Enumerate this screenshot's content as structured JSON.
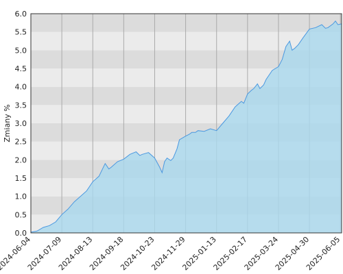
{
  "chart_data": {
    "type": "area",
    "y_label": "Zmiany %",
    "x": [
      0,
      5,
      10,
      15,
      20,
      25,
      30,
      35,
      40,
      45,
      50,
      55,
      60,
      63,
      65,
      70,
      75,
      80,
      85,
      88,
      90,
      95,
      100,
      104,
      106,
      108,
      110,
      113,
      115,
      118,
      120,
      125,
      128,
      130,
      133,
      135,
      140,
      145,
      150,
      155,
      160,
      165,
      170,
      172,
      175,
      178,
      180,
      183,
      185,
      188,
      190,
      195,
      200,
      203,
      206,
      209,
      211,
      213,
      216,
      220,
      225,
      230,
      235,
      238,
      240,
      244,
      246,
      248,
      251
    ],
    "series": [
      {
        "name": "Zmiany %",
        "color": "#4a98e0",
        "fill": "#a9d8ee",
        "values": [
          0.02,
          0.05,
          0.15,
          0.2,
          0.3,
          0.5,
          0.65,
          0.85,
          1.0,
          1.15,
          1.4,
          1.55,
          1.9,
          1.75,
          1.8,
          1.95,
          2.02,
          2.15,
          2.22,
          2.12,
          2.15,
          2.2,
          2.05,
          1.8,
          1.65,
          1.95,
          2.05,
          1.98,
          2.05,
          2.3,
          2.55,
          2.65,
          2.7,
          2.75,
          2.75,
          2.8,
          2.78,
          2.85,
          2.8,
          3.0,
          3.2,
          3.45,
          3.6,
          3.55,
          3.8,
          3.9,
          3.95,
          4.08,
          3.95,
          4.05,
          4.2,
          4.45,
          4.55,
          4.75,
          5.1,
          5.25,
          5.0,
          5.05,
          5.15,
          5.35,
          5.58,
          5.62,
          5.7,
          5.6,
          5.62,
          5.72,
          5.8,
          5.7,
          5.72
        ]
      }
    ],
    "xlim": [
      0,
      251
    ],
    "xticks": [
      {
        "value": 0,
        "label": "2024-06-04"
      },
      {
        "value": 25,
        "label": "2024-07-09"
      },
      {
        "value": 50,
        "label": "2024-08-13"
      },
      {
        "value": 75,
        "label": "2024-09-18"
      },
      {
        "value": 100,
        "label": "2024-10-23"
      },
      {
        "value": 125,
        "label": "2024-11-29"
      },
      {
        "value": 150,
        "label": "2025-01-13"
      },
      {
        "value": 175,
        "label": "2025-02-17"
      },
      {
        "value": 200,
        "label": "2025-03-24"
      },
      {
        "value": 225,
        "label": "2025-04-30"
      },
      {
        "value": 250,
        "label": "2025-06-05"
      }
    ],
    "ylim": [
      0,
      6
    ],
    "yticks": [
      {
        "value": 0,
        "label": "0.0"
      },
      {
        "value": 0.5,
        "label": "0.5"
      },
      {
        "value": 1,
        "label": "1.0"
      },
      {
        "value": 1.5,
        "label": "1.5"
      },
      {
        "value": 2,
        "label": "2.0"
      },
      {
        "value": 2.5,
        "label": "2.5"
      },
      {
        "value": 3,
        "label": "3.0"
      },
      {
        "value": 3.5,
        "label": "3.5"
      },
      {
        "value": 4,
        "label": "4.0"
      },
      {
        "value": 4.5,
        "label": "4.5"
      },
      {
        "value": 5,
        "label": "5.0"
      },
      {
        "value": 5.5,
        "label": "5.5"
      },
      {
        "value": 6,
        "label": "6.0"
      }
    ],
    "grid": true
  }
}
